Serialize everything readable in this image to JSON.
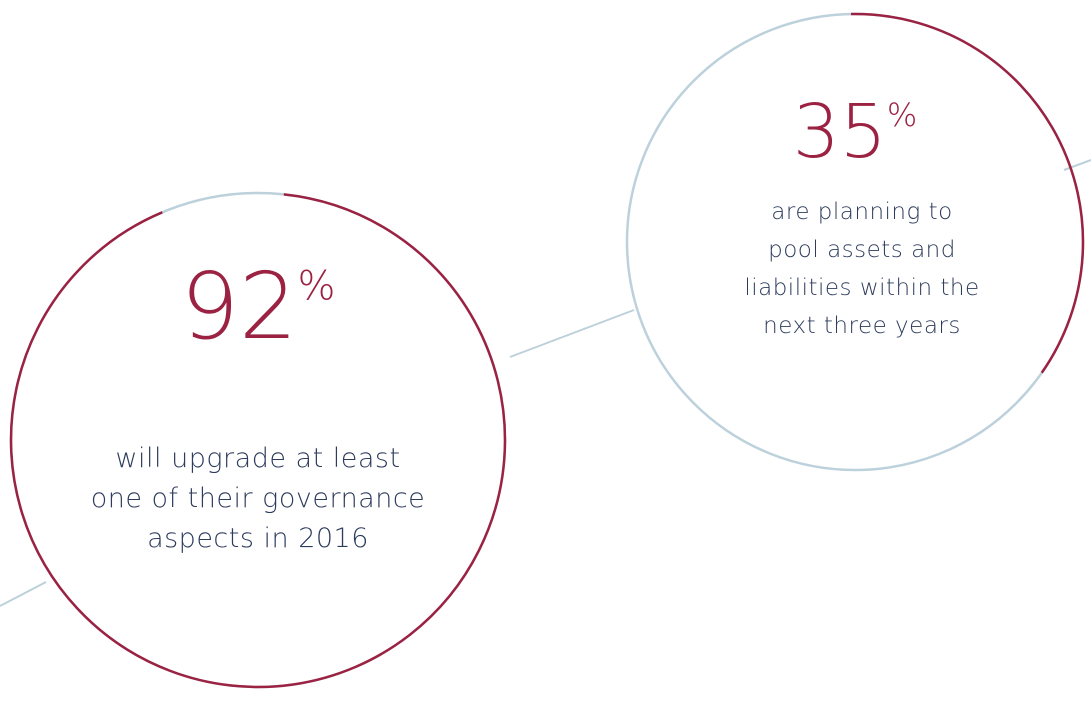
{
  "chart_data": [
    {
      "type": "ring",
      "value": 92,
      "unit": "%",
      "color": "#9b2242",
      "track_color": "#bcd1db",
      "caption": [
        "will upgrade at least",
        "one of their governance",
        "aspects in 2016"
      ]
    },
    {
      "type": "ring",
      "value": 35,
      "unit": "%",
      "color": "#9b2242",
      "track_color": "#bcd1db",
      "caption": [
        "are planning to",
        "pool assets and",
        "liabilities within the",
        "next three years"
      ]
    }
  ]
}
